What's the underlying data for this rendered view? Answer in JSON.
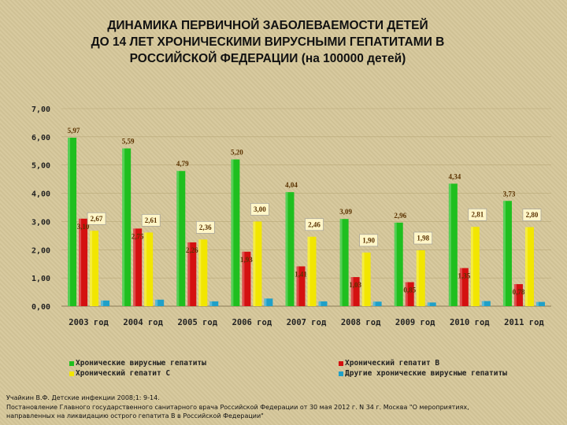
{
  "title_lines": [
    "ДИНАМИКА ПЕРВИЧНОЙ ЗАБОЛЕВАЕМОСТИ ДЕТЕЙ",
    "ДО 14 ЛЕТ ХРОНИЧЕСКИМИ ВИРУСНЫМИ ГЕПАТИТАМИ В",
    "РОССИЙСКОЙ ФЕДЕРАЦИИ (на 100000 детей)"
  ],
  "source_lines": [
    "Учайкин В.Ф. Детские инфекции 2008;1: 9-14.",
    "Постановление Главного государственного санитарного врача Российской Федерации от 30 мая 2012 г. N 34 г. Москва \"О мероприятиях,",
    "направленных на ликвидацию острого гепатита В в Российской Федерации\""
  ],
  "chart_data": {
    "type": "bar",
    "title": "",
    "xlabel": "",
    "ylabel": "",
    "ylim": [
      0,
      7
    ],
    "yticks": [
      "0,00",
      "1,00",
      "2,00",
      "3,00",
      "4,00",
      "5,00",
      "6,00",
      "7,00"
    ],
    "grid": true,
    "legend_position": "bottom",
    "categories": [
      "2003 год",
      "2004 год",
      "2005 год",
      "2006 год",
      "2007 год",
      "2008 год",
      "2009 год",
      "2010 год",
      "2011 год"
    ],
    "series": [
      {
        "name": "Хронические вирусные гепатиты",
        "color": "#1fbf1f",
        "values": [
          5.97,
          5.59,
          4.79,
          5.2,
          4.04,
          3.09,
          2.96,
          4.34,
          3.73
        ],
        "labels": [
          "5,97",
          "5,59",
          "4,79",
          "5,20",
          "4,04",
          "3,09",
          "2,96",
          "4,34",
          "3,73"
        ]
      },
      {
        "name": "Хронический гепатит В",
        "color": "#d41010",
        "values": [
          3.1,
          2.75,
          2.26,
          1.93,
          1.41,
          1.03,
          0.85,
          1.35,
          0.78
        ],
        "labels": [
          "3,10",
          "2,75",
          "2,26",
          "1,93",
          "1,41",
          "1,03",
          "0,85",
          "1,35",
          "0,78"
        ]
      },
      {
        "name": "Хронический гепатит С",
        "color": "#f2e600",
        "values": [
          2.67,
          2.61,
          2.36,
          3.0,
          2.46,
          1.9,
          1.98,
          2.81,
          2.8
        ],
        "labels": [
          "2,67",
          "2,61",
          "2,36",
          "3,00",
          "2,46",
          "1,90",
          "1,98",
          "2,81",
          "2,80"
        ]
      },
      {
        "name": "Другие хронические вирусные гепатиты",
        "color": "#1fa0c8",
        "values": [
          0.2,
          0.23,
          0.17,
          0.27,
          0.17,
          0.16,
          0.13,
          0.18,
          0.15
        ],
        "labels": []
      }
    ]
  }
}
